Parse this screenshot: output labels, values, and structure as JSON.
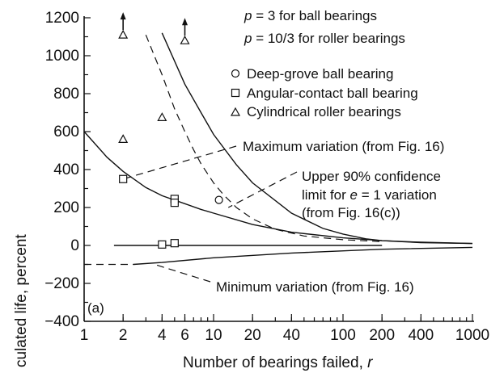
{
  "chart_data": {
    "type": "scatter",
    "panel_label": "(a)",
    "xlabel_prefix": "Number of bearings failed, ",
    "xlabel_var": "r",
    "ylabel": "culated life, percent",
    "x_scale": "log",
    "xlim": [
      1,
      1000
    ],
    "ylim": [
      -400,
      1200
    ],
    "x_ticks": [
      1,
      2,
      4,
      6,
      10,
      20,
      40,
      100,
      200,
      400,
      1000
    ],
    "x_tick_labels": [
      "1",
      "2",
      "4",
      "6",
      "10",
      "20",
      "40",
      "100",
      "200",
      "400",
      "1000"
    ],
    "y_ticks": [
      -400,
      -200,
      0,
      200,
      400,
      600,
      800,
      1000,
      1200
    ],
    "y_tick_labels": [
      "−400",
      "−200",
      "0",
      "200",
      "400",
      "600",
      "800",
      "1000",
      "1200"
    ],
    "p_notes": [
      {
        "var": "p",
        "text": " = 3 for ball bearings"
      },
      {
        "var": "p",
        "text": " = 10/3 for roller bearings"
      }
    ],
    "legend": [
      {
        "marker": "circle",
        "label": "Deep-grove ball bearing"
      },
      {
        "marker": "square",
        "label": "Angular-contact ball bearing"
      },
      {
        "marker": "triangle",
        "label": "Cylindrical roller bearings"
      }
    ],
    "series": [
      {
        "marker": "circle",
        "points": [
          [
            11,
            240
          ]
        ]
      },
      {
        "marker": "square",
        "points": [
          [
            2,
            350
          ],
          [
            5,
            245
          ],
          [
            5,
            225
          ],
          [
            4,
            5
          ],
          [
            5,
            12
          ]
        ]
      },
      {
        "marker": "triangle",
        "points": [
          [
            2,
            560
          ],
          [
            4,
            675
          ],
          [
            2,
            1110
          ],
          [
            6,
            1080
          ]
        ]
      }
    ],
    "arrows_up": [
      [
        2,
        1110
      ],
      [
        6,
        1080
      ]
    ],
    "curves": [
      {
        "style": "dashed",
        "points": [
          [
            3,
            1110
          ],
          [
            4,
            900
          ],
          [
            5,
            720
          ],
          [
            6,
            600
          ],
          [
            7,
            505
          ],
          [
            8,
            430
          ],
          [
            10,
            330
          ],
          [
            12,
            265
          ],
          [
            15,
            200
          ],
          [
            20,
            140
          ],
          [
            30,
            85
          ],
          [
            50,
            50
          ],
          [
            100,
            30
          ],
          [
            200,
            20
          ]
        ]
      },
      {
        "style": "solid",
        "points": [
          [
            1,
            600
          ],
          [
            1.5,
            465
          ],
          [
            2,
            390
          ],
          [
            3,
            305
          ],
          [
            4,
            262
          ],
          [
            6,
            220
          ],
          [
            8,
            190
          ],
          [
            10,
            170
          ],
          [
            20,
            110
          ],
          [
            40,
            70
          ],
          [
            100,
            40
          ],
          [
            200,
            25
          ],
          [
            400,
            17
          ],
          [
            1000,
            10
          ]
        ]
      },
      {
        "style": "solid",
        "points": [
          [
            4,
            1120
          ],
          [
            6,
            850
          ],
          [
            8,
            700
          ],
          [
            10,
            585
          ],
          [
            15,
            425
          ],
          [
            20,
            330
          ],
          [
            40,
            170
          ],
          [
            70,
            90
          ],
          [
            100,
            60
          ],
          [
            150,
            35
          ],
          [
            200,
            25
          ],
          [
            400,
            15
          ],
          [
            1000,
            10
          ]
        ]
      },
      {
        "style": "solid",
        "points": [
          [
            1.7,
            0
          ],
          [
            200,
            0
          ]
        ]
      },
      {
        "style": "solid",
        "points": [
          [
            2.4,
            -100
          ],
          [
            4,
            -90
          ],
          [
            10,
            -65
          ],
          [
            40,
            -40
          ],
          [
            200,
            -20
          ],
          [
            1000,
            -10
          ]
        ]
      },
      {
        "style": "dashed",
        "points": [
          [
            1,
            -100
          ],
          [
            2.4,
            -100
          ]
        ]
      }
    ],
    "annotations": [
      {
        "text": "Maximum variation (from Fig. 16)",
        "ax": 300,
        "ay": 181,
        "leader": [
          [
            292,
            181
          ],
          [
            2,
            350
          ]
        ]
      },
      {
        "text": "Upper 90% confidence",
        "ax": 373,
        "ay": 218,
        "leader": [
          [
            367,
            213
          ],
          [
            13,
            200
          ]
        ]
      },
      {
        "text": "limit for ",
        "var": "e",
        "rest": " = 1 variation",
        "ax": 373,
        "ay": 241
      },
      {
        "text": "(from Fig. 16(c))",
        "ax": 373,
        "ay": 263
      },
      {
        "text": "Minimum variation (from Fig. 16)",
        "ax": 267,
        "ay": 355,
        "leader": [
          [
            260,
            349
          ],
          [
            3.5,
            -100
          ]
        ]
      }
    ]
  }
}
